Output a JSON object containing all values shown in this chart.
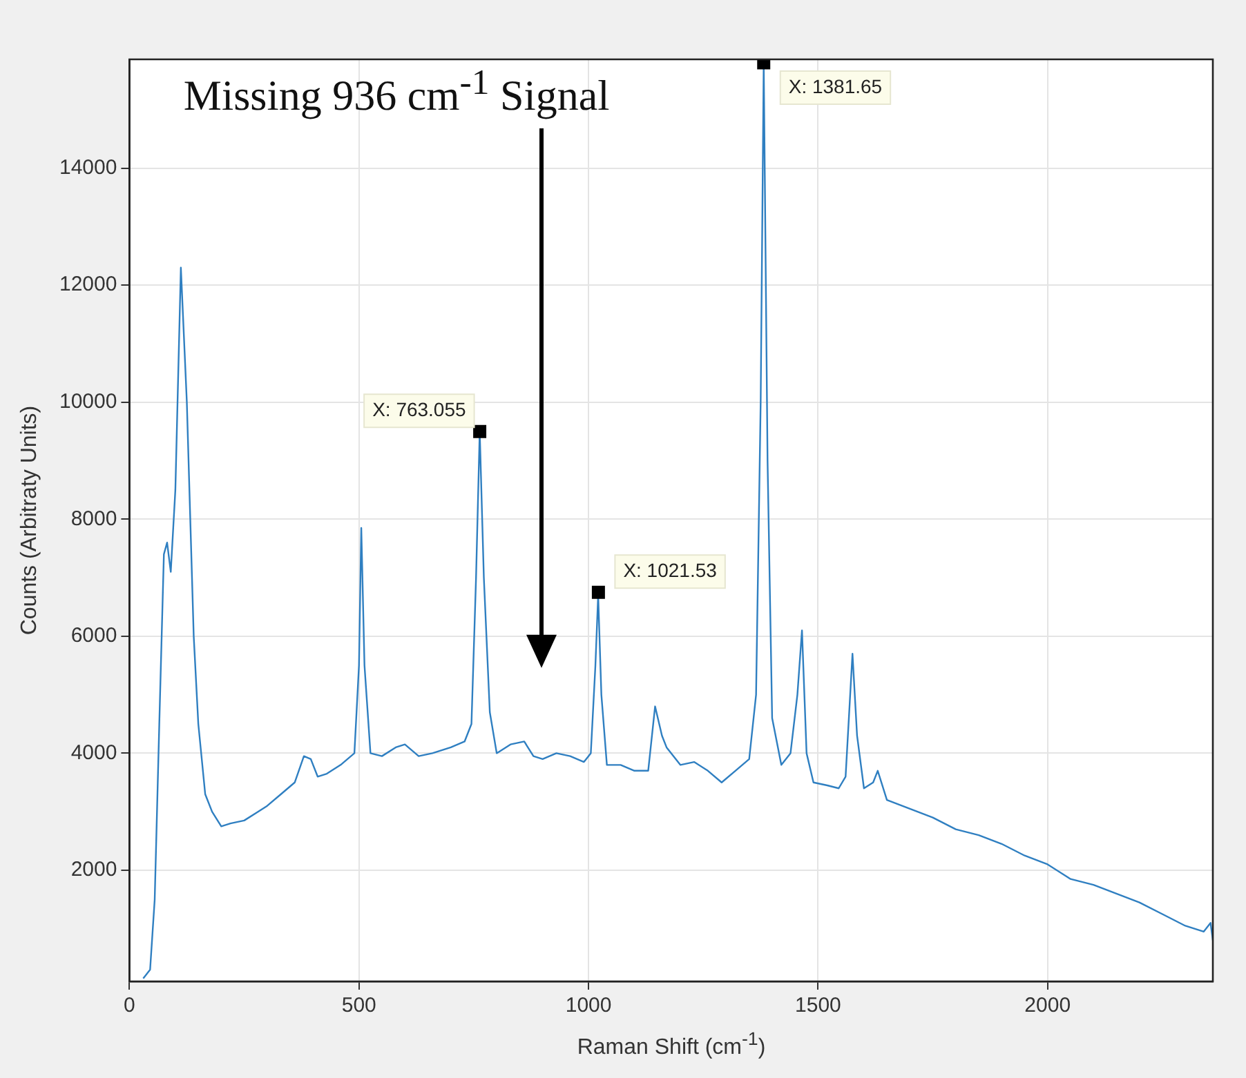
{
  "chart_data": {
    "type": "line",
    "xlabel": "Raman Shift (cm$^{-1}$)",
    "ylabel": "Counts (Arbitraty Units)",
    "xlim": [
      0,
      2360
    ],
    "ylim": [
      100,
      15860
    ],
    "xticks": [
      0,
      500,
      1000,
      1500,
      2000
    ],
    "yticks": [
      2000,
      4000,
      6000,
      8000,
      10000,
      12000,
      14000
    ],
    "grid": true,
    "marker": "none",
    "series": [
      {
        "color": "#2f7fc1",
        "x": [
          30,
          45,
          55,
          65,
          75,
          82,
          90,
          100,
          112,
          125,
          140,
          150,
          165,
          180,
          200,
          220,
          250,
          280,
          300,
          330,
          360,
          380,
          395,
          410,
          430,
          460,
          490,
          500,
          505,
          512,
          525,
          550,
          580,
          600,
          630,
          660,
          700,
          730,
          745,
          755,
          763,
          772,
          785,
          800,
          830,
          860,
          880,
          900,
          930,
          960,
          990,
          1005,
          1015,
          1021,
          1028,
          1040,
          1070,
          1100,
          1130,
          1145,
          1160,
          1170,
          1200,
          1230,
          1260,
          1290,
          1320,
          1350,
          1365,
          1375,
          1381.65,
          1390,
          1400,
          1420,
          1440,
          1455,
          1465,
          1475,
          1490,
          1520,
          1545,
          1560,
          1575,
          1585,
          1600,
          1620,
          1630,
          1650,
          1700,
          1750,
          1800,
          1850,
          1900,
          1950,
          2000,
          2050,
          2100,
          2150,
          2200,
          2250,
          2300,
          2340,
          2355,
          2360
        ],
        "values": [
          150,
          300,
          1500,
          4500,
          7400,
          7600,
          7100,
          8500,
          12300,
          10000,
          6000,
          4500,
          3300,
          3000,
          2750,
          2800,
          2850,
          3000,
          3100,
          3300,
          3500,
          3950,
          3900,
          3600,
          3650,
          3800,
          4000,
          5500,
          7850,
          5500,
          4000,
          3950,
          4100,
          4150,
          3950,
          4000,
          4100,
          4200,
          4500,
          7000,
          9500,
          7000,
          4700,
          4000,
          4150,
          4200,
          3950,
          3900,
          4000,
          3950,
          3850,
          4000,
          5500,
          6700,
          5000,
          3800,
          3800,
          3700,
          3700,
          4800,
          4300,
          4100,
          3800,
          3850,
          3700,
          3500,
          3700,
          3900,
          5000,
          10000,
          15800,
          9000,
          4600,
          3800,
          4000,
          5000,
          6100,
          4000,
          3500,
          3450,
          3400,
          3600,
          5700,
          4300,
          3400,
          3500,
          3700,
          3200,
          3050,
          2900,
          2700,
          2600,
          2450,
          2250,
          2100,
          1850,
          1750,
          1600,
          1450,
          1250,
          1050,
          950,
          1100,
          800
        ]
      },
      {
        "type": "scatter",
        "color": "#000000",
        "marker": "square",
        "x": [
          763.055,
          1021.53,
          1381.65
        ],
        "values": [
          9500,
          6750,
          15800
        ]
      }
    ],
    "annotations": [
      {
        "text": "X: 763.055",
        "x": 763.055,
        "y": 9500
      },
      {
        "text": "X: 1021.53",
        "x": 1021.53,
        "y": 6750
      },
      {
        "text": "X: 1381.65",
        "x": 1381.65,
        "y": 15800
      },
      "Missing 936 cm$^{-1}$ Signal"
    ]
  }
}
